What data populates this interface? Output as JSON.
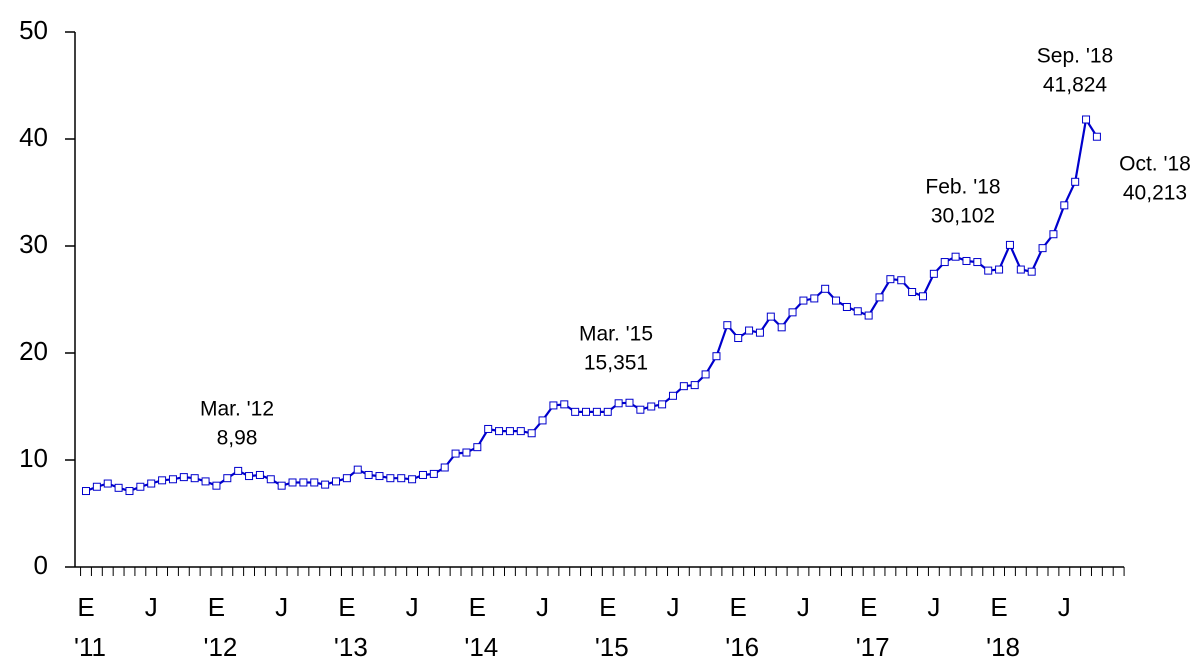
{
  "chart_data": {
    "type": "line",
    "categories": [
      "E",
      null,
      null,
      null,
      null,
      null,
      "J",
      null,
      null,
      null,
      null,
      null,
      "E",
      null,
      null,
      null,
      null,
      null,
      "J",
      null,
      null,
      null,
      null,
      null,
      "E",
      null,
      null,
      null,
      null,
      null,
      "J",
      null,
      null,
      null,
      null,
      null,
      "E",
      null,
      null,
      null,
      null,
      null,
      "J",
      null,
      null,
      null,
      null,
      null,
      "E",
      null,
      null,
      null,
      null,
      null,
      "J",
      null,
      null,
      null,
      null,
      null,
      "E",
      null,
      null,
      null,
      null,
      null,
      "J",
      null,
      null,
      null,
      null,
      null,
      "E",
      null,
      null,
      null,
      null,
      null,
      "J",
      null,
      null,
      null,
      null,
      null,
      "E",
      null,
      null,
      null,
      null,
      null,
      "J",
      null,
      null,
      null,
      null,
      null
    ],
    "year_labels": [
      "'11",
      "'12",
      "'13",
      "'14",
      "'15",
      "'16",
      "'17",
      "'18"
    ],
    "series": [
      {
        "color": "#0000cc",
        "values": [
          7.1,
          7.5,
          7.8,
          7.4,
          7.1,
          7.5,
          7.8,
          8.1,
          8.2,
          8.4,
          8.3,
          8.0,
          7.6,
          8.3,
          8.98,
          8.5,
          8.6,
          8.2,
          7.6,
          7.9,
          7.9,
          7.9,
          7.7,
          8.0,
          8.3,
          9.1,
          8.6,
          8.5,
          8.3,
          8.3,
          8.2,
          8.6,
          8.7,
          9.3,
          10.6,
          10.7,
          11.2,
          12.9,
          12.7,
          12.7,
          12.7,
          12.5,
          13.7,
          15.1,
          15.2,
          14.5,
          14.5,
          14.5,
          14.5,
          15.3,
          15.351,
          14.7,
          15.0,
          15.2,
          16.0,
          16.9,
          17.0,
          18.0,
          19.7,
          22.6,
          21.4,
          22.1,
          21.9,
          23.4,
          22.4,
          23.8,
          24.9,
          25.1,
          26.0,
          24.9,
          24.3,
          23.9,
          23.5,
          25.2,
          26.9,
          26.8,
          25.7,
          25.3,
          27.4,
          28.5,
          29.0,
          28.6,
          28.5,
          27.7,
          27.8,
          30.102,
          27.8,
          27.6,
          29.8,
          31.1,
          33.8,
          36.0,
          41.824,
          40.213,
          null,
          null
        ]
      }
    ],
    "annotations": [
      {
        "month": "Mar. '12",
        "value": "8,98"
      },
      {
        "month": "Mar. '15",
        "value": "15,351"
      },
      {
        "month": "Feb. '18",
        "value": "30,102"
      },
      {
        "month": "Sep. '18",
        "value": "41,824"
      },
      {
        "month": "Oct. '18",
        "value": "40,213"
      }
    ],
    "ylim": [
      0,
      50
    ],
    "yticks": [
      0,
      10,
      20,
      30,
      40,
      50
    ]
  }
}
